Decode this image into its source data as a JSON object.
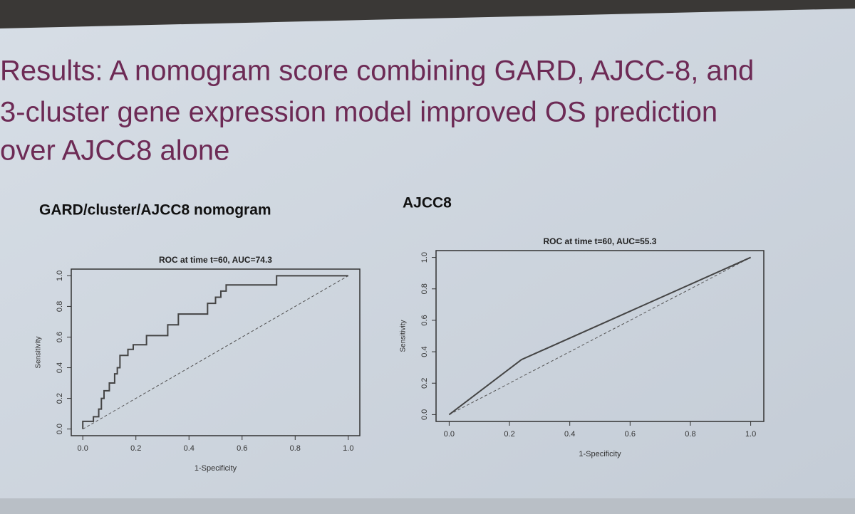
{
  "slide_title": [
    "Results: A nomogram score combining GARD, AJCC-8, and",
    "3-cluster gene expression model improved OS prediction",
    "over AJCC8 alone"
  ],
  "chart_data": [
    {
      "type": "line",
      "panel_title": "GARD/cluster/AJCC8 nomogram",
      "title": "ROC at time t=60, AUC=74.3",
      "x_label": "1-Specificity",
      "y_label": "Sensitivity",
      "color": "#444444",
      "x": [
        0,
        0,
        0.04,
        0.04,
        0.06,
        0.06,
        0.07,
        0.07,
        0.08,
        0.08,
        0.1,
        0.1,
        0.12,
        0.12,
        0.13,
        0.13,
        0.14,
        0.14,
        0.17,
        0.17,
        0.19,
        0.19,
        0.24,
        0.24,
        0.32,
        0.32,
        0.36,
        0.36,
        0.47,
        0.47,
        0.5,
        0.5,
        0.52,
        0.52,
        0.54,
        0.54,
        0.73,
        0.73,
        1.0
      ],
      "values": [
        0,
        0.05,
        0.05,
        0.08,
        0.08,
        0.13,
        0.13,
        0.2,
        0.2,
        0.25,
        0.25,
        0.3,
        0.3,
        0.36,
        0.36,
        0.4,
        0.4,
        0.48,
        0.48,
        0.52,
        0.52,
        0.55,
        0.55,
        0.61,
        0.61,
        0.68,
        0.68,
        0.75,
        0.75,
        0.82,
        0.82,
        0.86,
        0.86,
        0.9,
        0.9,
        0.94,
        0.94,
        1.0,
        1.0
      ],
      "xlim": [
        0,
        1
      ],
      "ylim": [
        0,
        1
      ],
      "xticks": [
        {
          "value": 0,
          "label": "0.0"
        },
        {
          "value": 0.2,
          "label": "0.2"
        },
        {
          "value": 0.4,
          "label": "0.4"
        },
        {
          "value": 0.6,
          "label": "0.6"
        },
        {
          "value": 0.8,
          "label": "0.8"
        },
        {
          "value": 1,
          "label": "1.0"
        }
      ],
      "yticks": [
        {
          "value": 0,
          "label": "0.0"
        },
        {
          "value": 0.2,
          "label": "0.2"
        },
        {
          "value": 0.4,
          "label": "0.4"
        },
        {
          "value": 0.6,
          "label": "0.6"
        },
        {
          "value": 0.8,
          "label": "0.8"
        },
        {
          "value": 1,
          "label": "1.0"
        }
      ]
    },
    {
      "type": "line",
      "panel_title": "AJCC8",
      "title": "ROC at time t=60, AUC=55.3",
      "x_label": "1-Specificity",
      "y_label": "Sensitivity",
      "color": "#444444",
      "x": [
        0,
        0.24,
        1.0
      ],
      "values": [
        0,
        0.35,
        1.0
      ],
      "xlim": [
        0,
        1
      ],
      "ylim": [
        0,
        1
      ],
      "xticks": [
        {
          "value": 0,
          "label": "0.0"
        },
        {
          "value": 0.2,
          "label": "0.2"
        },
        {
          "value": 0.4,
          "label": "0.4"
        },
        {
          "value": 0.6,
          "label": "0.6"
        },
        {
          "value": 0.8,
          "label": "0.8"
        },
        {
          "value": 1,
          "label": "1.0"
        }
      ],
      "yticks": [
        {
          "value": 0,
          "label": "0.0"
        },
        {
          "value": 0.2,
          "label": "0.2"
        },
        {
          "value": 0.4,
          "label": "0.4"
        },
        {
          "value": 0.6,
          "label": "0.6"
        },
        {
          "value": 0.8,
          "label": "0.8"
        },
        {
          "value": 1,
          "label": "1.0"
        }
      ]
    }
  ]
}
